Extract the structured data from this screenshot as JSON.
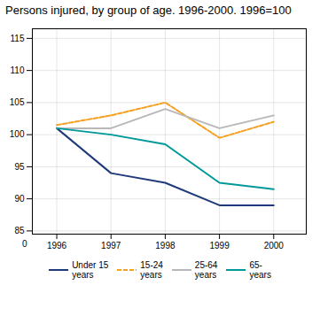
{
  "chart_data": {
    "type": "line",
    "title": "Persons injured, by group of age. 1996-2000. 1996=100",
    "x": [
      1996,
      1997,
      1998,
      1999,
      2000
    ],
    "series": [
      {
        "name": "Under 15\nyears",
        "color": "#1f3a7a",
        "line_style": "solid",
        "values": [
          101,
          94,
          92.5,
          89,
          89
        ]
      },
      {
        "name": "15-24\nyears",
        "color": "#f5a020",
        "line_style": "dashed",
        "values": [
          101.5,
          103,
          105,
          99.5,
          102
        ]
      },
      {
        "name": "25-64\nyears",
        "color": "#b8b8b8",
        "line_style": "solid",
        "values": [
          101,
          101,
          104,
          101,
          103
        ]
      },
      {
        "name": "65-\nyears",
        "color": "#009999",
        "line_style": "solid",
        "values": [
          101,
          100,
          98.5,
          92.5,
          91.5
        ]
      }
    ],
    "xlim": [
      1995.55,
      2000.6
    ],
    "xticks": [
      1996,
      1997,
      1998,
      1999,
      2000
    ],
    "ylim": [
      84.5,
      116.5
    ],
    "yticks": [
      85,
      90,
      95,
      100,
      105,
      110,
      115
    ],
    "annotations": [
      {
        "text": "0"
      }
    ],
    "grid": true,
    "legend": "bottom"
  }
}
